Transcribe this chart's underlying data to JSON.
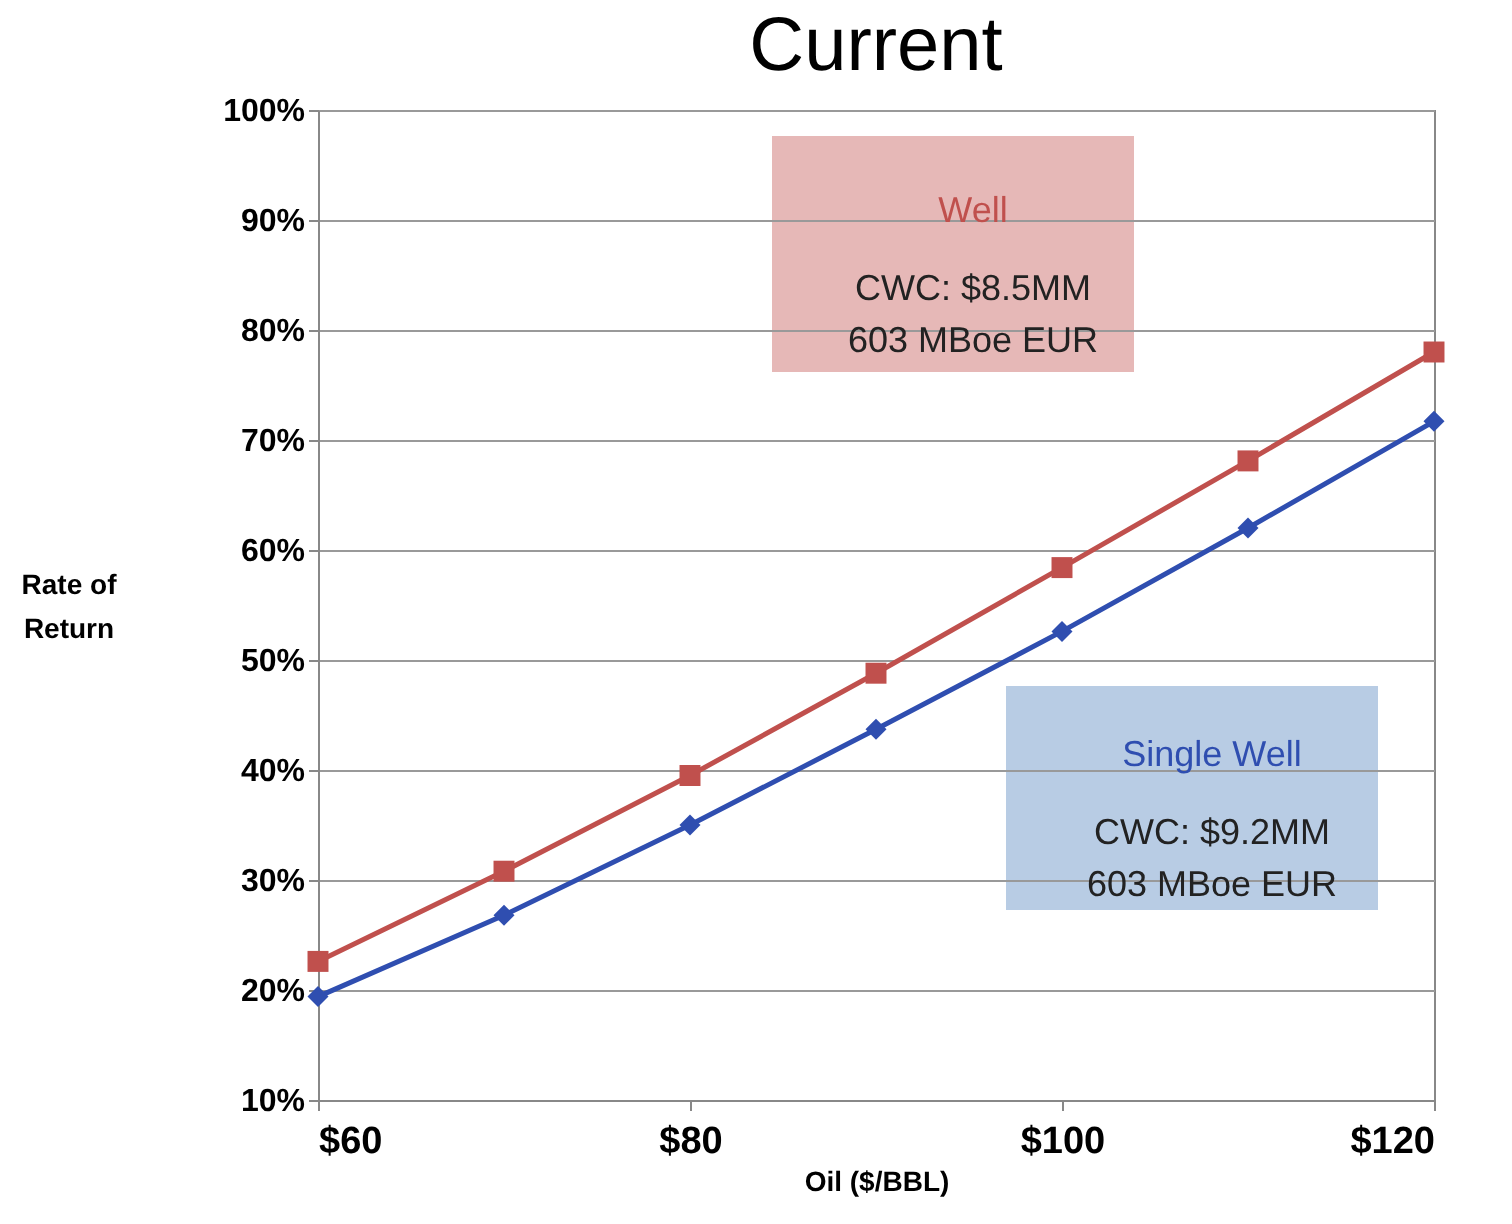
{
  "chart_data": {
    "type": "line",
    "title": "Current",
    "xlabel": "Oil ($/BBL)",
    "ylabel": "Rate of Return",
    "x": [
      60,
      70,
      80,
      90,
      100,
      110,
      120
    ],
    "series": [
      {
        "name": "Well",
        "color": "#c0504d",
        "marker": "square",
        "values": [
          22.6,
          30.8,
          39.5,
          48.8,
          58.4,
          68.1,
          78.0
        ]
      },
      {
        "name": "Single Well",
        "color": "#2f4eb0",
        "marker": "diamond",
        "values": [
          19.4,
          26.8,
          35.0,
          43.7,
          52.6,
          62.0,
          71.7
        ]
      }
    ],
    "annotations": [
      "CWC: $8.5MM",
      "603 MBoe EUR",
      "CWC: $9.2MM",
      "603 MBoe EUR"
    ],
    "xlim": [
      60,
      120
    ],
    "ylim": [
      10,
      100
    ],
    "xticks": [
      {
        "value": 60,
        "label": "$60"
      },
      {
        "value": 80,
        "label": "$80"
      },
      {
        "value": 100,
        "label": "$100"
      },
      {
        "value": 120,
        "label": "$120"
      }
    ],
    "yticks": [
      {
        "value": 10,
        "label": "10%"
      },
      {
        "value": 20,
        "label": "20%"
      },
      {
        "value": 30,
        "label": "30%"
      },
      {
        "value": 40,
        "label": "40%"
      },
      {
        "value": 50,
        "label": "50%"
      },
      {
        "value": 60,
        "label": "60%"
      },
      {
        "value": 70,
        "label": "70%"
      },
      {
        "value": 80,
        "label": "80%"
      },
      {
        "value": 90,
        "label": "90%"
      },
      {
        "value": 100,
        "label": "100%"
      }
    ],
    "grid": "y",
    "line_style": "solid"
  }
}
